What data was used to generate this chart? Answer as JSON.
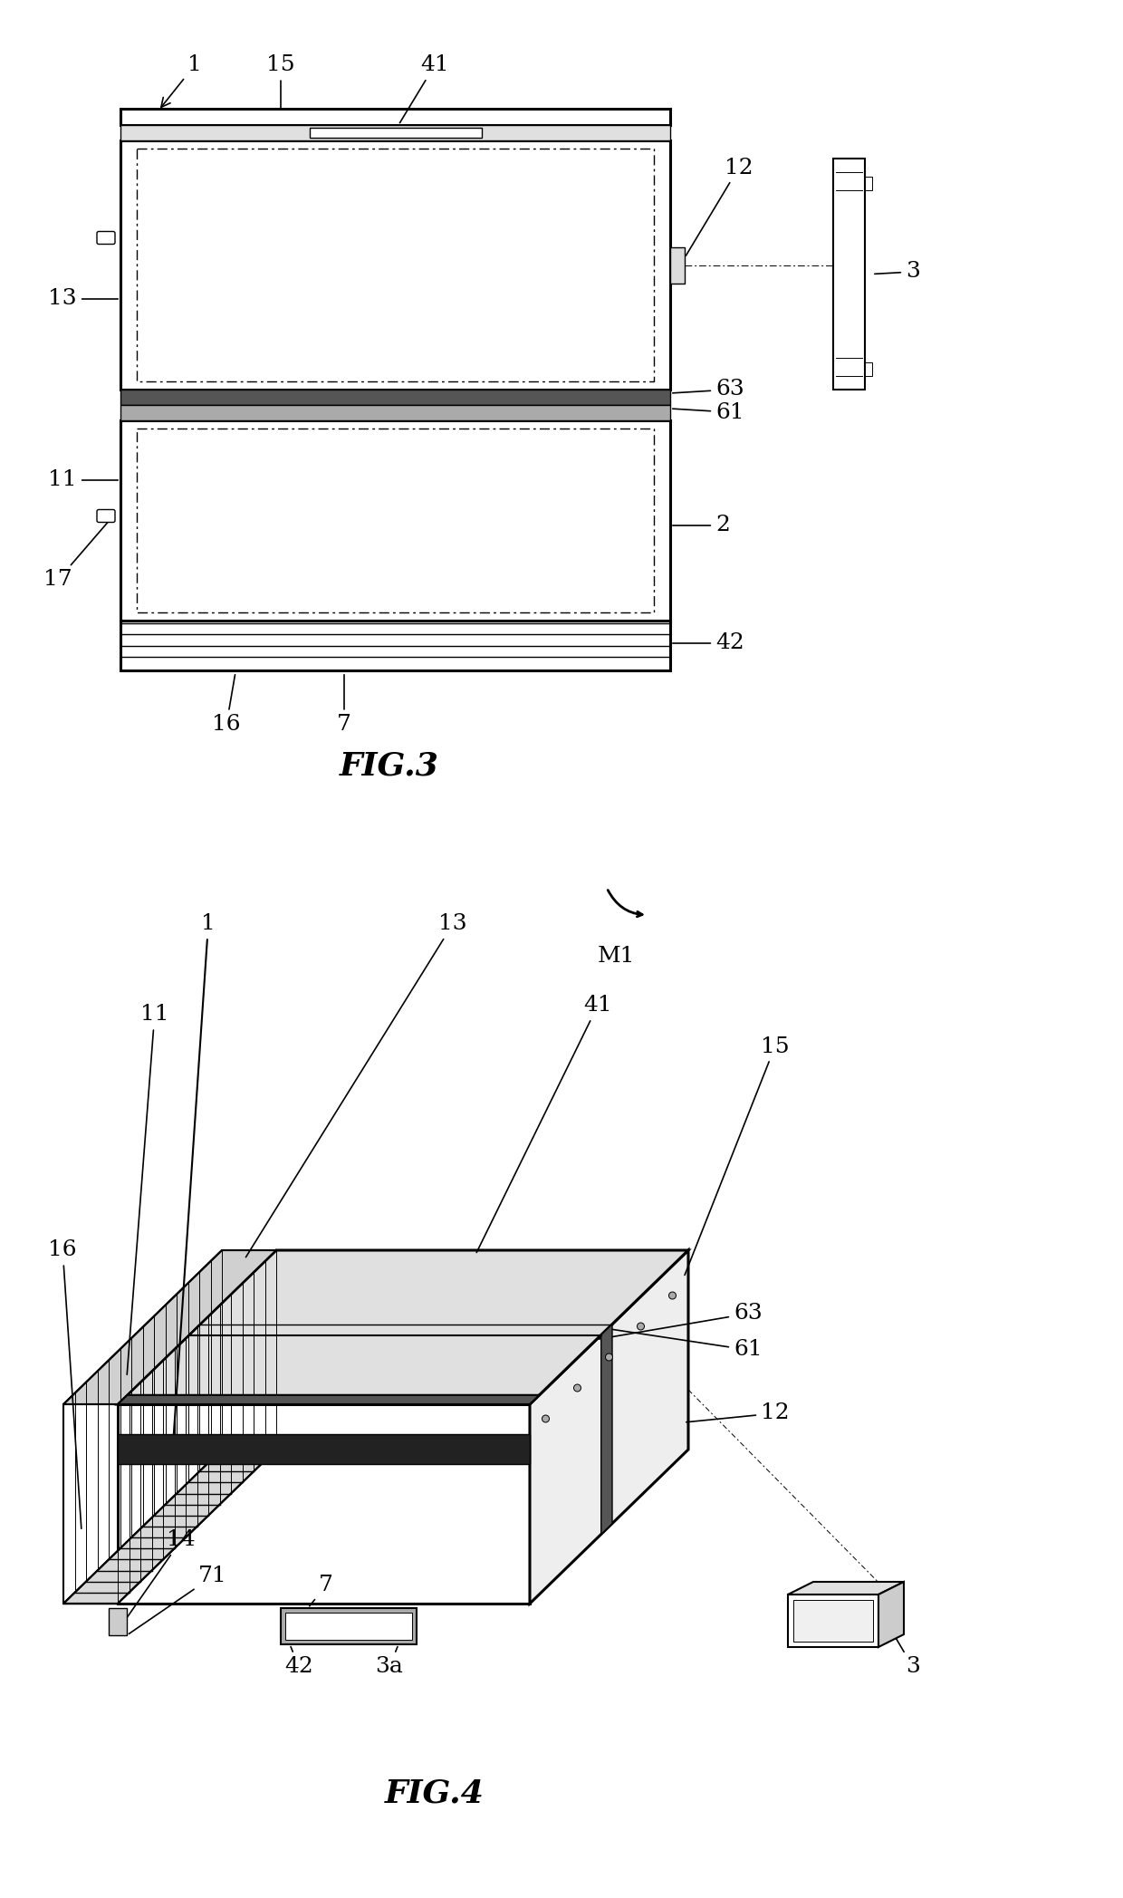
{
  "bg_color": "#ffffff",
  "line_color": "#000000",
  "fig3_caption": "FIG.3",
  "fig4_caption": "FIG.4",
  "lw_thick": 2.2,
  "lw_med": 1.5,
  "lw_thin": 1.0,
  "lw_hair": 0.7,
  "label_fs": 18
}
